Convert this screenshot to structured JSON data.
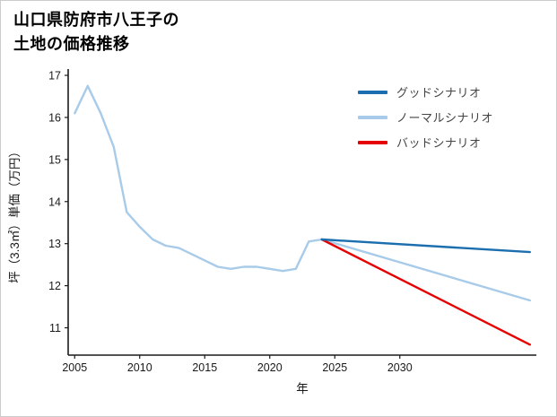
{
  "frame": {
    "background": "#ffffff",
    "border_color": "#cccccc"
  },
  "title": {
    "line1": "山口県防府市八王子の",
    "line2": "土地の価格推移"
  },
  "chart_data": {
    "type": "line",
    "title": "山口県防府市八王子の土地の価格推移",
    "xlabel": "年",
    "ylabel": "坪（3.3㎡）単価（万円）",
    "xlim": [
      2004.5,
      2040.5
    ],
    "ylim": [
      10.35,
      17.15
    ],
    "xticks": [
      2005,
      2010,
      2015,
      2020,
      2025,
      2030
    ],
    "yticks": [
      11,
      12,
      13,
      14,
      15,
      16,
      17
    ],
    "grid": false,
    "legend_position": "upper right",
    "axis_color": "#1a1a1a",
    "series": [
      {
        "name": "グッドシナリオ",
        "color": "#1b6fae",
        "x": [
          2024,
          2040
        ],
        "y": [
          13.1,
          12.8
        ]
      },
      {
        "name": "ノーマルシナリオ",
        "color": "#a8cbe9",
        "x": [
          2005,
          2006,
          2007,
          2008,
          2009,
          2010,
          2011,
          2012,
          2013,
          2014,
          2015,
          2016,
          2017,
          2018,
          2019,
          2020,
          2021,
          2022,
          2023,
          2024,
          2040
        ],
        "y": [
          16.1,
          16.75,
          16.1,
          15.3,
          13.75,
          13.4,
          13.1,
          12.95,
          12.9,
          12.75,
          12.6,
          12.45,
          12.4,
          12.45,
          12.45,
          12.4,
          12.35,
          12.4,
          13.05,
          13.1,
          11.65
        ]
      },
      {
        "name": "バッドシナリオ",
        "color": "#e60000",
        "x": [
          2024,
          2040
        ],
        "y": [
          13.1,
          10.6
        ]
      }
    ]
  }
}
